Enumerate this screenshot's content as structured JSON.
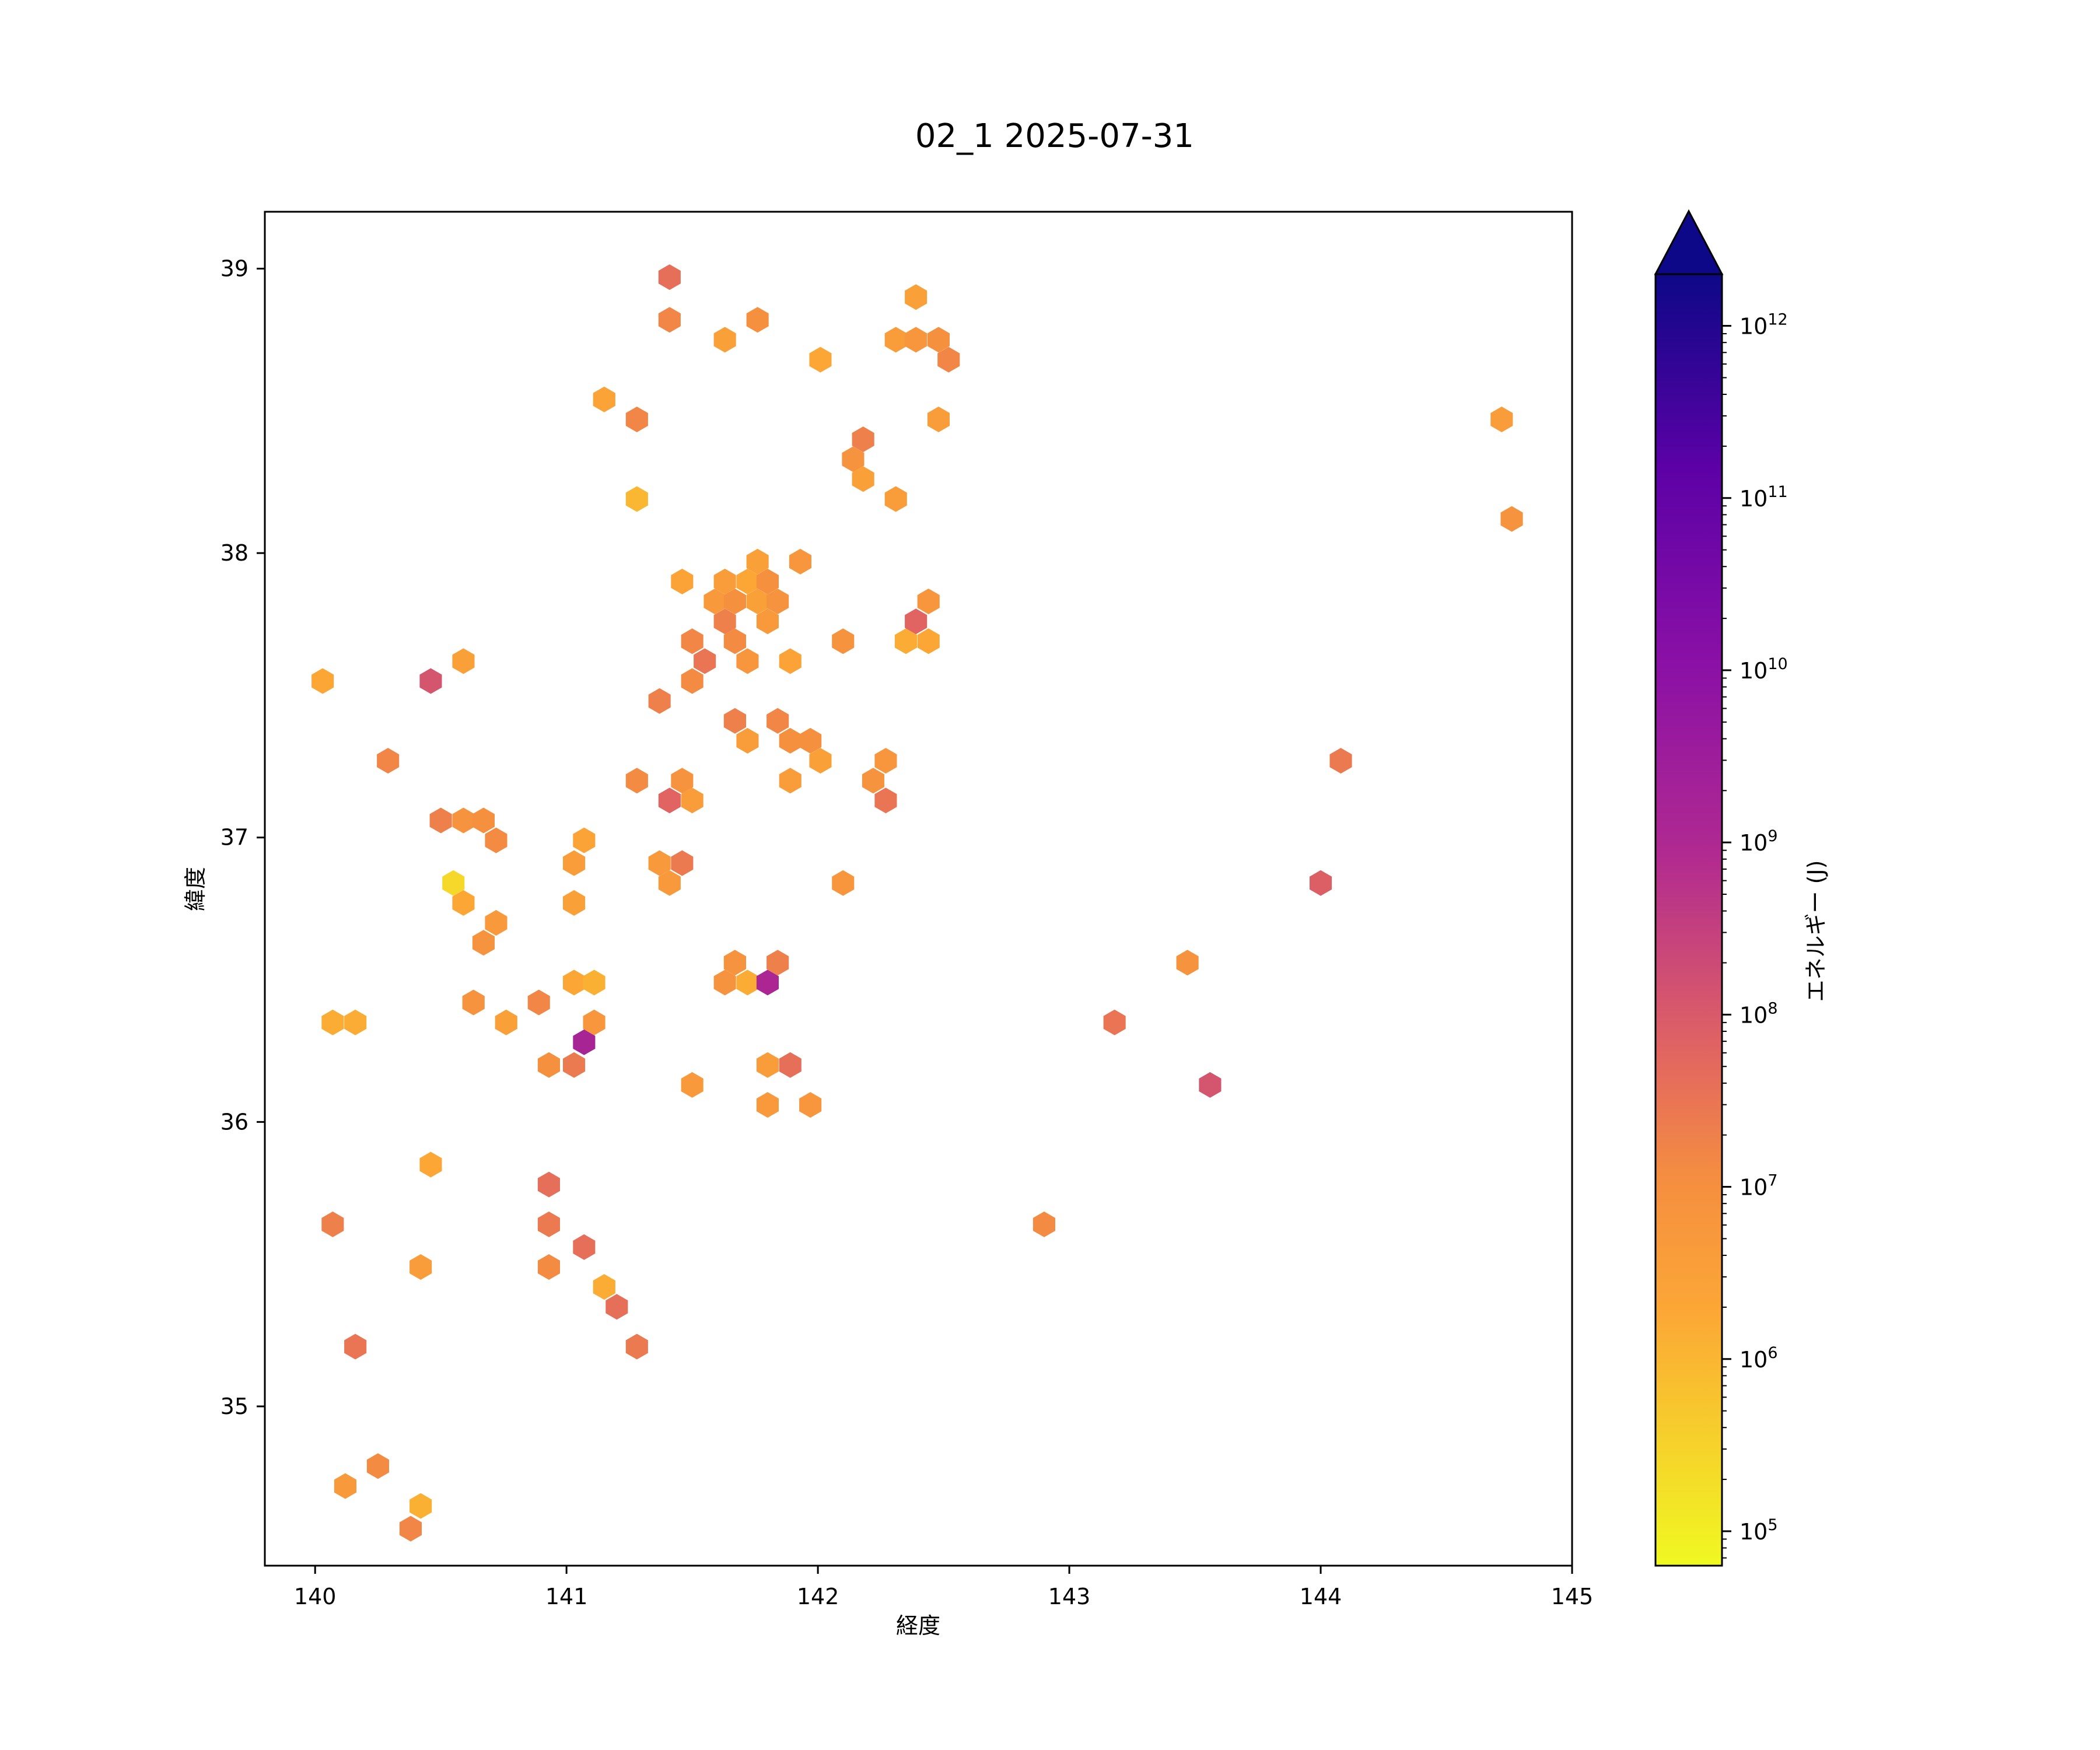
{
  "chart_data": {
    "type": "hexbin",
    "title": "02_1 2025-07-31",
    "xlabel": "経度",
    "ylabel": "緯度",
    "xlim": [
      139.8,
      145.0
    ],
    "ylim": [
      34.44,
      39.2
    ],
    "xticks": [
      140,
      141,
      142,
      143,
      144,
      145
    ],
    "yticks": [
      35,
      36,
      37,
      38,
      39
    ],
    "colorbar": {
      "label": "エネルギー (J)",
      "scale": "log",
      "colormap": "plasma_r",
      "range_log10": [
        4.8,
        12.3
      ],
      "ticks": [
        {
          "exp": 5,
          "base": "10",
          "sup": "5"
        },
        {
          "exp": 6,
          "base": "10",
          "sup": "6"
        },
        {
          "exp": 7,
          "base": "10",
          "sup": "7"
        },
        {
          "exp": 8,
          "base": "10",
          "sup": "8"
        },
        {
          "exp": 9,
          "base": "10",
          "sup": "9"
        },
        {
          "exp": 10,
          "base": "10",
          "sup": "10"
        },
        {
          "exp": 11,
          "base": "10",
          "sup": "11"
        },
        {
          "exp": 12,
          "base": "10",
          "sup": "12"
        }
      ],
      "extend": "max"
    },
    "points": [
      [
        141.41,
        38.97,
        7.6
      ],
      [
        141.41,
        38.82,
        7.2
      ],
      [
        141.63,
        38.75,
        6.5
      ],
      [
        141.76,
        38.82,
        7.0
      ],
      [
        142.01,
        38.68,
        6.3
      ],
      [
        142.31,
        38.75,
        6.6
      ],
      [
        142.39,
        38.75,
        6.8
      ],
      [
        142.48,
        38.75,
        7.0
      ],
      [
        142.52,
        38.68,
        7.2
      ],
      [
        142.39,
        38.9,
        6.5
      ],
      [
        142.48,
        38.47,
        6.6
      ],
      [
        141.15,
        38.54,
        6.4
      ],
      [
        141.28,
        38.47,
        7.2
      ],
      [
        141.28,
        38.19,
        6.0
      ],
      [
        142.14,
        38.33,
        6.9
      ],
      [
        142.18,
        38.4,
        7.3
      ],
      [
        142.18,
        38.26,
        6.5
      ],
      [
        142.31,
        38.19,
        6.6
      ],
      [
        141.46,
        37.9,
        6.4
      ],
      [
        141.63,
        37.9,
        6.6
      ],
      [
        141.72,
        37.9,
        6.3
      ],
      [
        141.76,
        37.97,
        6.5
      ],
      [
        141.8,
        37.9,
        7.0
      ],
      [
        141.93,
        37.97,
        6.8
      ],
      [
        141.59,
        37.83,
        6.7
      ],
      [
        141.67,
        37.83,
        7.0
      ],
      [
        141.76,
        37.83,
        6.5
      ],
      [
        141.84,
        37.83,
        6.9
      ],
      [
        141.63,
        37.76,
        7.3
      ],
      [
        141.8,
        37.76,
        6.7
      ],
      [
        141.5,
        37.69,
        7.2
      ],
      [
        141.67,
        37.69,
        7.1
      ],
      [
        141.55,
        37.62,
        7.5
      ],
      [
        141.72,
        37.62,
        6.8
      ],
      [
        141.89,
        37.62,
        6.4
      ],
      [
        142.1,
        37.69,
        6.9
      ],
      [
        142.35,
        37.69,
        6.2
      ],
      [
        142.44,
        37.69,
        6.3
      ],
      [
        142.39,
        37.76,
        7.8
      ],
      [
        142.44,
        37.83,
        6.8
      ],
      [
        141.5,
        37.55,
        7.1
      ],
      [
        141.37,
        37.48,
        7.3
      ],
      [
        141.67,
        37.41,
        7.3
      ],
      [
        141.72,
        37.34,
        6.6
      ],
      [
        141.84,
        37.41,
        7.2
      ],
      [
        141.89,
        37.34,
        7.0
      ],
      [
        141.97,
        37.34,
        7.0
      ],
      [
        142.01,
        37.27,
        6.5
      ],
      [
        141.89,
        37.2,
        6.6
      ],
      [
        142.22,
        37.2,
        6.9
      ],
      [
        142.27,
        37.27,
        6.8
      ],
      [
        142.27,
        37.13,
        7.5
      ],
      [
        141.28,
        37.2,
        7.1
      ],
      [
        141.41,
        37.13,
        7.8
      ],
      [
        141.46,
        37.2,
        6.9
      ],
      [
        141.5,
        37.13,
        6.6
      ],
      [
        141.37,
        36.91,
        6.7
      ],
      [
        141.41,
        36.84,
        6.7
      ],
      [
        141.46,
        36.91,
        7.4
      ],
      [
        142.1,
        36.84,
        6.8
      ],
      [
        140.03,
        37.55,
        6.3
      ],
      [
        140.46,
        37.55,
        8.1
      ],
      [
        140.59,
        37.62,
        6.5
      ],
      [
        140.29,
        37.27,
        7.2
      ],
      [
        140.5,
        37.06,
        7.3
      ],
      [
        140.59,
        37.06,
        6.9
      ],
      [
        140.67,
        37.06,
        7.0
      ],
      [
        140.72,
        36.99,
        7.1
      ],
      [
        140.55,
        36.84,
        5.4
      ],
      [
        140.59,
        36.77,
        6.3
      ],
      [
        140.72,
        36.7,
        6.7
      ],
      [
        140.67,
        36.63,
        6.9
      ],
      [
        141.07,
        36.99,
        6.4
      ],
      [
        141.03,
        36.91,
        6.6
      ],
      [
        141.03,
        36.77,
        6.5
      ],
      [
        141.03,
        36.49,
        6.3
      ],
      [
        141.11,
        36.49,
        6.1
      ],
      [
        140.63,
        36.42,
        6.9
      ],
      [
        140.76,
        36.35,
        6.5
      ],
      [
        140.89,
        36.42,
        7.2
      ],
      [
        141.11,
        36.35,
        6.8
      ],
      [
        141.07,
        36.28,
        9.2
      ],
      [
        140.93,
        36.2,
        7.0
      ],
      [
        141.03,
        36.2,
        7.4
      ],
      [
        141.5,
        36.13,
        6.7
      ],
      [
        141.67,
        36.56,
        6.9
      ],
      [
        141.63,
        36.49,
        6.9
      ],
      [
        141.72,
        36.49,
        6.2
      ],
      [
        141.8,
        36.49,
        9.1
      ],
      [
        141.84,
        36.56,
        7.3
      ],
      [
        141.8,
        36.2,
        6.6
      ],
      [
        141.89,
        36.2,
        7.6
      ],
      [
        141.8,
        36.06,
        6.7
      ],
      [
        141.97,
        36.06,
        6.8
      ],
      [
        140.07,
        36.35,
        6.2
      ],
      [
        140.16,
        36.35,
        6.2
      ],
      [
        140.46,
        35.85,
        6.3
      ],
      [
        140.07,
        35.64,
        7.3
      ],
      [
        140.42,
        35.49,
        6.6
      ],
      [
        140.93,
        35.78,
        7.6
      ],
      [
        140.93,
        35.64,
        7.4
      ],
      [
        140.93,
        35.49,
        7.1
      ],
      [
        141.07,
        35.56,
        7.6
      ],
      [
        141.15,
        35.42,
        6.2
      ],
      [
        141.2,
        35.35,
        7.6
      ],
      [
        141.28,
        35.21,
        7.4
      ],
      [
        140.16,
        35.21,
        7.5
      ],
      [
        140.25,
        34.79,
        7.1
      ],
      [
        140.12,
        34.72,
        6.7
      ],
      [
        140.42,
        34.65,
        6.1
      ],
      [
        140.38,
        34.57,
        7.2
      ],
      [
        142.9,
        35.64,
        7.1
      ],
      [
        143.18,
        36.35,
        7.5
      ],
      [
        143.47,
        36.56,
        6.9
      ],
      [
        143.56,
        36.13,
        8.1
      ],
      [
        144.0,
        36.84,
        7.9
      ],
      [
        144.08,
        37.27,
        7.4
      ],
      [
        144.72,
        38.47,
        6.6
      ],
      [
        144.76,
        38.12,
        6.9
      ]
    ]
  }
}
